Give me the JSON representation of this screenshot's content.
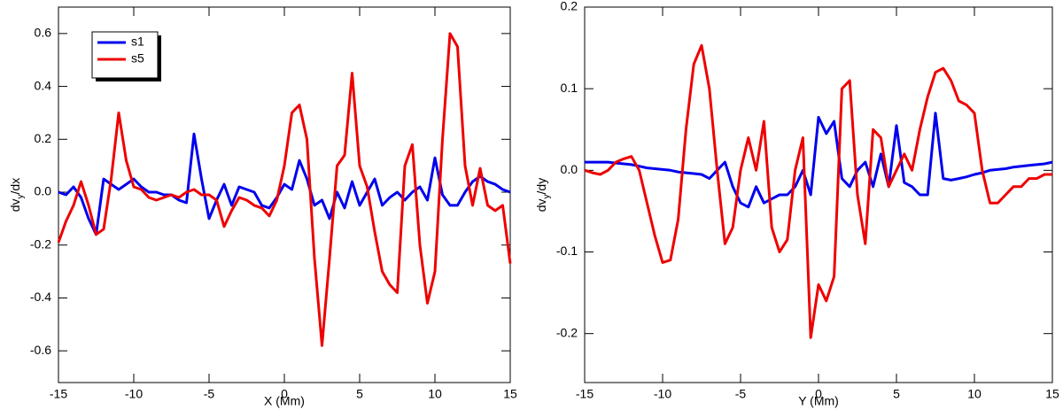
{
  "chart_data": [
    {
      "type": "line",
      "x_label": "X (Mm)",
      "y_label_parts": [
        "dv",
        "y",
        "/dx"
      ],
      "x": [
        -15,
        -14.5,
        -14,
        -13.5,
        -13,
        -12.5,
        -12,
        -11.5,
        -11,
        -10.5,
        -10,
        -9.5,
        -9,
        -8.5,
        -8,
        -7.5,
        -7,
        -6.5,
        -6,
        -5.5,
        -5,
        -4.5,
        -4,
        -3.5,
        -3,
        -2.5,
        -2,
        -1.5,
        -1,
        -0.5,
        0,
        0.5,
        1,
        1.5,
        2,
        2.5,
        3,
        3.5,
        4,
        4.5,
        5,
        5.5,
        6,
        6.5,
        7,
        7.5,
        8,
        8.5,
        9,
        9.5,
        10,
        10.5,
        11,
        11.5,
        12,
        12.5,
        13,
        13.5,
        14,
        14.5,
        15
      ],
      "series": [
        {
          "name": "s1",
          "color": "#0000ee",
          "values": [
            0.0,
            -0.01,
            0.02,
            -0.02,
            -0.1,
            -0.16,
            0.05,
            0.03,
            0.01,
            0.03,
            0.05,
            0.02,
            0.0,
            0.0,
            -0.01,
            -0.01,
            -0.03,
            -0.04,
            0.22,
            0.05,
            -0.1,
            -0.03,
            0.03,
            -0.05,
            0.02,
            0.01,
            0.0,
            -0.05,
            -0.06,
            -0.02,
            0.03,
            0.01,
            0.12,
            0.05,
            -0.05,
            -0.03,
            -0.1,
            0.0,
            -0.06,
            0.04,
            -0.05,
            0.0,
            0.05,
            -0.05,
            -0.02,
            0.0,
            -0.03,
            0.0,
            0.02,
            -0.03,
            0.13,
            -0.01,
            -0.05,
            -0.05,
            0.0,
            0.04,
            0.06,
            0.04,
            0.03,
            0.01,
            0.0
          ]
        },
        {
          "name": "s5",
          "color": "#ee0000",
          "values": [
            -0.19,
            -0.11,
            -0.05,
            0.04,
            -0.05,
            -0.16,
            -0.14,
            0.05,
            0.3,
            0.12,
            0.02,
            0.01,
            -0.02,
            -0.03,
            -0.02,
            -0.01,
            -0.02,
            0.0,
            0.01,
            -0.01,
            -0.01,
            -0.03,
            -0.13,
            -0.07,
            -0.02,
            -0.03,
            -0.05,
            -0.06,
            -0.09,
            -0.03,
            0.1,
            0.3,
            0.33,
            0.2,
            -0.25,
            -0.58,
            -0.25,
            0.1,
            0.14,
            0.45,
            0.1,
            0.02,
            -0.15,
            -0.3,
            -0.35,
            -0.38,
            0.1,
            0.18,
            -0.2,
            -0.42,
            -0.3,
            0.2,
            0.6,
            0.55,
            0.1,
            -0.05,
            0.09,
            -0.05,
            -0.07,
            -0.05,
            -0.27
          ]
        }
      ],
      "xlim": [
        -15,
        15
      ],
      "xticks": [
        -15,
        -10,
        -5,
        0,
        5,
        10,
        15
      ],
      "ylim": [
        -0.72,
        0.7
      ],
      "yticks": [
        -0.6,
        -0.4,
        -0.2,
        {
          "value": 0,
          "label": "0.0"
        },
        0.2,
        0.4,
        0.6
      ],
      "legend": "upper left"
    },
    {
      "type": "line",
      "x_label": "Y (Mm)",
      "y_label_parts": [
        "dv",
        "y",
        "/dy"
      ],
      "x": [
        -15,
        -14.5,
        -14,
        -13.5,
        -13,
        -12.5,
        -12,
        -11.5,
        -11,
        -10.5,
        -10,
        -9.5,
        -9,
        -8.5,
        -8,
        -7.5,
        -7,
        -6.5,
        -6,
        -5.5,
        -5,
        -4.5,
        -4,
        -3.5,
        -3,
        -2.5,
        -2,
        -1.5,
        -1,
        -0.5,
        0,
        0.5,
        1,
        1.5,
        2,
        2.5,
        3,
        3.5,
        4,
        4.5,
        5,
        5.5,
        6,
        6.5,
        7,
        7.5,
        8,
        8.5,
        9,
        9.5,
        10,
        10.5,
        11,
        11.5,
        12,
        12.5,
        13,
        13.5,
        14,
        14.5,
        15
      ],
      "series": [
        {
          "name": "s1",
          "color": "#0000ee",
          "values": [
            0.01,
            0.01,
            0.01,
            0.01,
            0.009,
            0.008,
            0.007,
            0.005,
            0.003,
            0.002,
            0.001,
            0.0,
            -0.002,
            -0.003,
            -0.004,
            -0.005,
            -0.01,
            0.0,
            0.01,
            -0.02,
            -0.04,
            -0.045,
            -0.02,
            -0.04,
            -0.035,
            -0.03,
            -0.03,
            -0.02,
            0.0,
            -0.03,
            0.065,
            0.045,
            0.06,
            -0.01,
            -0.02,
            0.0,
            0.01,
            -0.02,
            0.02,
            -0.02,
            0.055,
            -0.015,
            -0.02,
            -0.03,
            -0.03,
            0.07,
            -0.01,
            -0.012,
            -0.01,
            -0.008,
            -0.005,
            -0.003,
            0.0,
            0.001,
            0.002,
            0.004,
            0.005,
            0.006,
            0.007,
            0.008,
            0.01
          ]
        },
        {
          "name": "s5",
          "color": "#ee0000",
          "values": [
            0.0,
            -0.003,
            -0.005,
            0.0,
            0.01,
            0.014,
            0.017,
            0.0,
            -0.04,
            -0.08,
            -0.113,
            -0.11,
            -0.06,
            0.05,
            0.13,
            0.153,
            0.1,
            0.0,
            -0.09,
            -0.07,
            0.0,
            0.04,
            0.0,
            0.06,
            -0.07,
            -0.1,
            -0.085,
            0.0,
            0.04,
            -0.205,
            -0.14,
            -0.16,
            -0.13,
            0.1,
            0.11,
            -0.03,
            -0.09,
            0.05,
            0.04,
            -0.02,
            0.0,
            0.02,
            0.0,
            0.05,
            0.09,
            0.12,
            0.125,
            0.11,
            0.085,
            0.08,
            0.07,
            0.0,
            -0.04,
            -0.04,
            -0.03,
            -0.02,
            -0.02,
            -0.01,
            -0.01,
            -0.005,
            -0.005
          ]
        }
      ],
      "xlim": [
        -15,
        15
      ],
      "xticks": [
        -15,
        -10,
        -5,
        0,
        5,
        10,
        15
      ],
      "ylim": [
        -0.26,
        0.2
      ],
      "yticks": [
        -0.2,
        -0.1,
        {
          "value": 0,
          "label": "0.0"
        },
        0.1,
        0.2
      ]
    }
  ]
}
